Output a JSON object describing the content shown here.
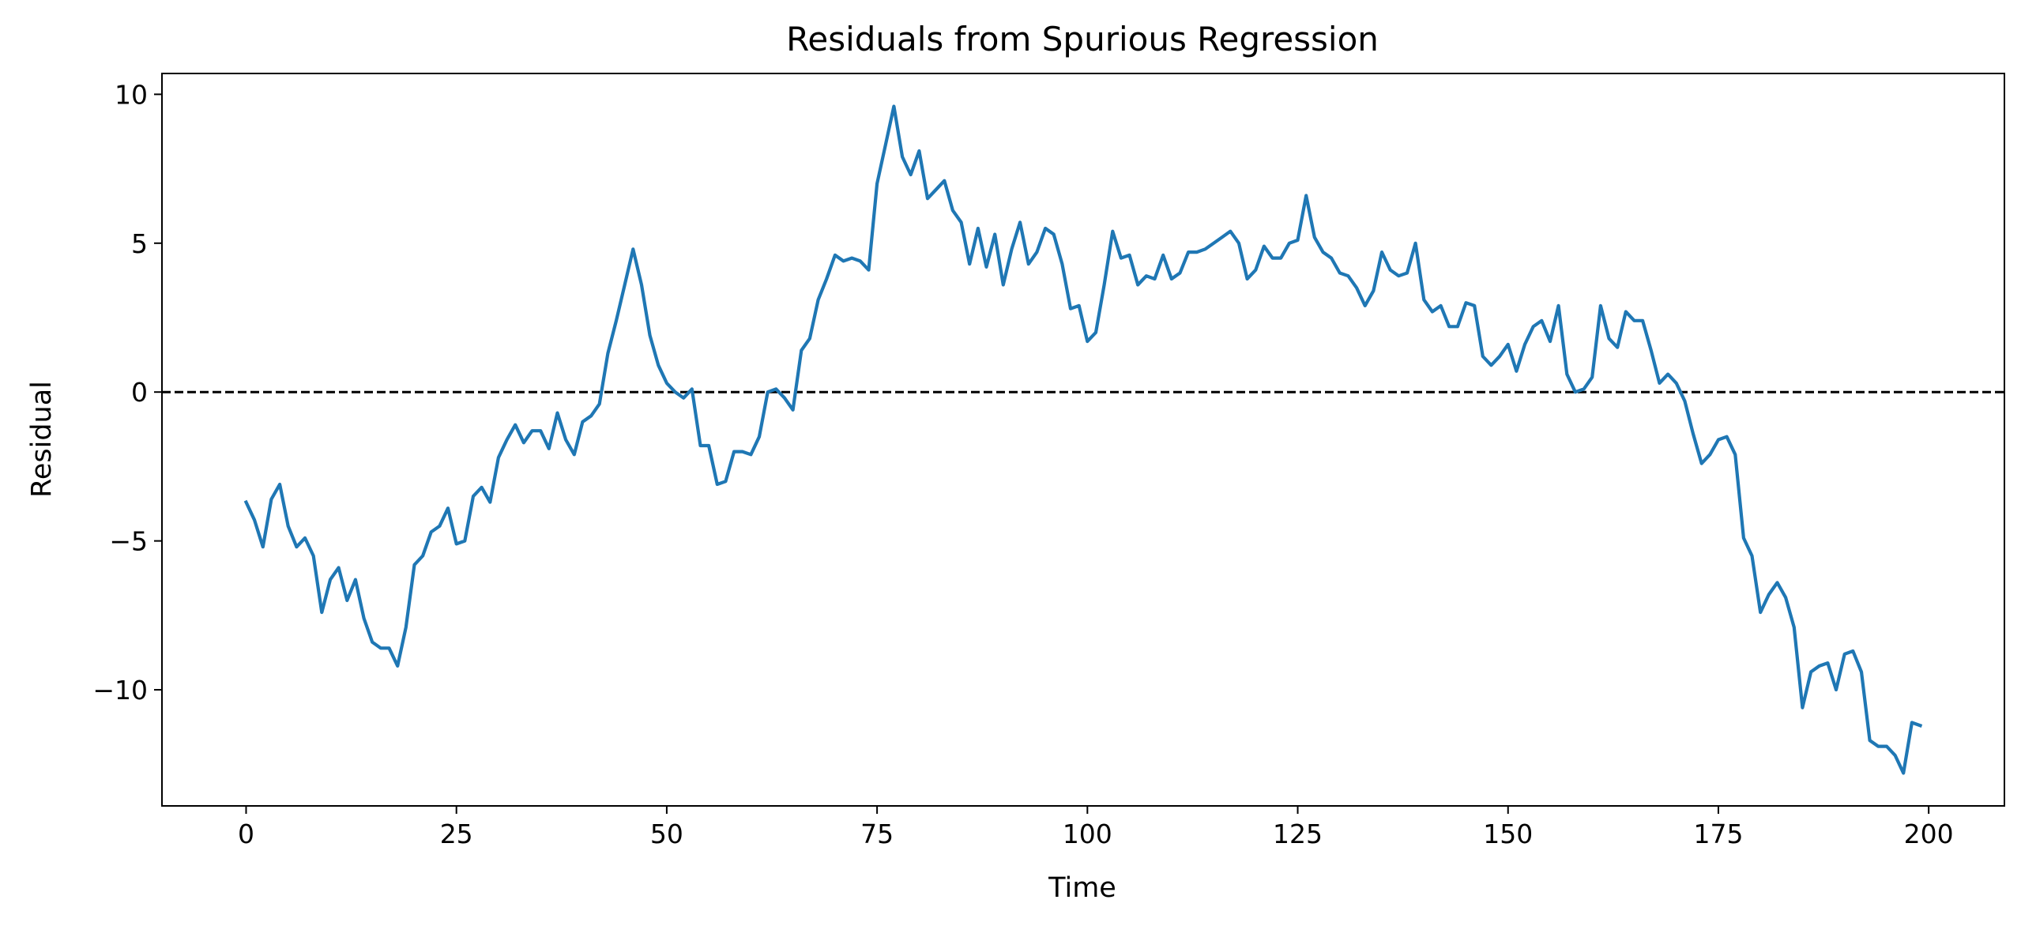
{
  "chart_data": {
    "type": "line",
    "title": "Residuals from Spurious Regression",
    "xlabel": "Time",
    "ylabel": "Residual",
    "xlim": [
      -10,
      209
    ],
    "ylim": [
      -13.9,
      10.7
    ],
    "xticks": [
      0,
      25,
      50,
      75,
      100,
      125,
      150,
      175,
      200
    ],
    "yticks": [
      10,
      5,
      0,
      -5,
      -10
    ],
    "xtick_labels": [
      "0",
      "25",
      "50",
      "75",
      "100",
      "125",
      "150",
      "175",
      "200"
    ],
    "ytick_labels": [
      "10",
      "5",
      "0",
      "−5",
      "−10"
    ],
    "grid": false,
    "reference_line": {
      "y": 0,
      "style": "dashed",
      "color": "#000000"
    },
    "series": [
      {
        "color": "#1f77b4",
        "x": [
          0,
          1,
          2,
          3,
          4,
          5,
          6,
          7,
          8,
          9,
          10,
          11,
          12,
          13,
          14,
          15,
          16,
          17,
          18,
          19,
          20,
          21,
          22,
          23,
          24,
          25,
          26,
          27,
          28,
          29,
          30,
          31,
          32,
          33,
          34,
          35,
          36,
          37,
          38,
          39,
          40,
          41,
          42,
          43,
          44,
          45,
          46,
          47,
          48,
          49,
          50,
          51,
          52,
          53,
          54,
          55,
          56,
          57,
          58,
          59,
          60,
          61,
          62,
          63,
          64,
          65,
          66,
          67,
          68,
          69,
          70,
          71,
          72,
          73,
          74,
          75,
          76,
          77,
          78,
          79,
          80,
          81,
          82,
          83,
          84,
          85,
          86,
          87,
          88,
          89,
          90,
          91,
          92,
          93,
          94,
          95,
          96,
          97,
          98,
          99,
          100,
          101,
          102,
          103,
          104,
          105,
          106,
          107,
          108,
          109,
          110,
          111,
          112,
          113,
          114,
          115,
          116,
          117,
          118,
          119,
          120,
          121,
          122,
          123,
          124,
          125,
          126,
          127,
          128,
          129,
          130,
          131,
          132,
          133,
          134,
          135,
          136,
          137,
          138,
          139,
          140,
          141,
          142,
          143,
          144,
          145,
          146,
          147,
          148,
          149,
          150,
          151,
          152,
          153,
          154,
          155,
          156,
          157,
          158,
          159,
          160,
          161,
          162,
          163,
          164,
          165,
          166,
          167,
          168,
          169,
          170,
          171,
          172,
          173,
          174,
          175,
          176,
          177,
          178,
          179,
          180,
          181,
          182,
          183,
          184,
          185,
          186,
          187,
          188,
          189,
          190,
          191,
          192,
          193,
          194,
          195,
          196,
          197,
          198,
          199
        ],
        "values": [
          -3.7,
          -4.3,
          -5.2,
          -3.6,
          -3.1,
          -4.5,
          -5.2,
          -4.9,
          -5.5,
          -7.4,
          -6.3,
          -5.9,
          -7.0,
          -6.3,
          -7.6,
          -8.4,
          -8.6,
          -8.6,
          -9.2,
          -7.9,
          -5.8,
          -5.5,
          -4.7,
          -4.5,
          -3.9,
          -5.1,
          -5.0,
          -3.5,
          -3.2,
          -3.7,
          -2.2,
          -1.6,
          -1.1,
          -1.7,
          -1.3,
          -1.3,
          -1.9,
          -0.7,
          -1.6,
          -2.1,
          -1.0,
          -0.8,
          -0.4,
          1.3,
          2.4,
          3.6,
          4.8,
          3.6,
          1.9,
          0.9,
          0.3,
          0.0,
          -0.2,
          0.1,
          -1.8,
          -1.8,
          -3.1,
          -3.0,
          -2.0,
          -2.0,
          -2.1,
          -1.5,
          0.0,
          0.1,
          -0.2,
          -0.6,
          1.4,
          1.8,
          3.1,
          3.8,
          4.6,
          4.4,
          4.5,
          4.4,
          4.1,
          7.0,
          8.3,
          9.6,
          7.9,
          7.3,
          8.1,
          6.5,
          6.8,
          7.1,
          6.1,
          5.7,
          4.3,
          5.5,
          4.2,
          5.3,
          3.6,
          4.8,
          5.7,
          4.3,
          4.7,
          5.5,
          5.3,
          4.3,
          2.8,
          2.9,
          1.7,
          2.0,
          3.6,
          5.4,
          4.5,
          4.6,
          3.6,
          3.9,
          3.8,
          4.6,
          3.8,
          4.0,
          4.7,
          4.7,
          4.8,
          5.0,
          5.2,
          5.4,
          5.0,
          3.8,
          4.1,
          4.9,
          4.5,
          4.5,
          5.0,
          5.1,
          6.6,
          5.2,
          4.7,
          4.5,
          4.0,
          3.9,
          3.5,
          2.9,
          3.4,
          4.7,
          4.1,
          3.9,
          4.0,
          5.0,
          3.1,
          2.7,
          2.9,
          2.2,
          2.2,
          3.0,
          2.9,
          1.2,
          0.9,
          1.2,
          1.6,
          0.7,
          1.6,
          2.2,
          2.4,
          1.7,
          2.9,
          0.6,
          0.0,
          0.1,
          0.5,
          2.9,
          1.8,
          1.5,
          2.7,
          2.4,
          2.4,
          1.4,
          0.3,
          0.6,
          0.3,
          -0.3,
          -1.4,
          -2.4,
          -2.1,
          -1.6,
          -1.5,
          -2.1,
          -4.9,
          -5.5,
          -7.4,
          -6.8,
          -6.4,
          -6.9,
          -7.9,
          -10.6,
          -9.4,
          -9.2,
          -9.1,
          -10.0,
          -8.8,
          -8.7,
          -9.4,
          -11.7,
          -11.9,
          -11.9,
          -12.2,
          -12.8,
          -11.1,
          -11.2
        ]
      }
    ]
  }
}
